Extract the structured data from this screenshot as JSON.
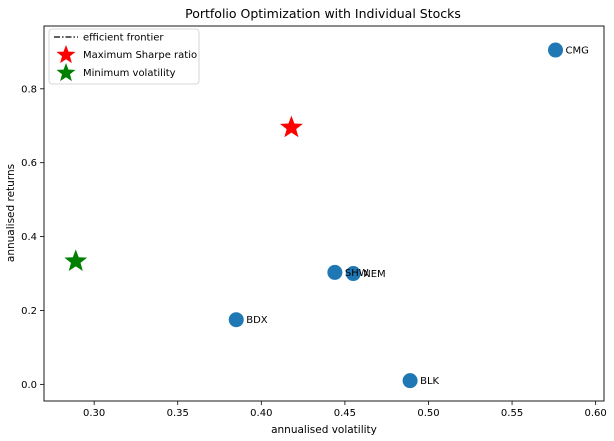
{
  "chart_data": {
    "type": "scatter",
    "title": "Portfolio Optimization with Individual Stocks",
    "xlabel": "annualised volatility",
    "ylabel": "annualised returns",
    "xlim": [
      0.27,
      0.605
    ],
    "ylim": [
      -0.045,
      0.97
    ],
    "x_ticks": [
      0.3,
      0.35,
      0.4,
      0.45,
      0.5,
      0.55,
      0.6
    ],
    "x_tick_labels": [
      "0.30",
      "0.35",
      "0.40",
      "0.45",
      "0.50",
      "0.55",
      "0.60"
    ],
    "y_ticks": [
      0.0,
      0.2,
      0.4,
      0.6,
      0.8
    ],
    "y_tick_labels": [
      "0.0",
      "0.2",
      "0.4",
      "0.6",
      "0.8"
    ],
    "grid": false,
    "legend_position": "top-left",
    "legend": [
      {
        "label": "efficient frontier",
        "marker": "dashdot-line",
        "color": "#000000"
      },
      {
        "label": "Maximum Sharpe ratio",
        "marker": "star",
        "color": "#ff0000"
      },
      {
        "label": "Minimum volatility",
        "marker": "star",
        "color": "#008000"
      }
    ],
    "stocks": [
      {
        "label": "CMG",
        "x": 0.576,
        "y": 0.905
      },
      {
        "label": "SHW",
        "x": 0.444,
        "y": 0.303
      },
      {
        "label": "NEM",
        "x": 0.455,
        "y": 0.3
      },
      {
        "label": "BDX",
        "x": 0.385,
        "y": 0.175
      },
      {
        "label": "BLK",
        "x": 0.489,
        "y": 0.01
      }
    ],
    "stock_color": "#1f77b4",
    "special_points": [
      {
        "name": "Maximum Sharpe ratio",
        "x": 0.418,
        "y": 0.695,
        "color": "#ff0000"
      },
      {
        "name": "Minimum volatility",
        "x": 0.289,
        "y": 0.333,
        "color": "#008000"
      }
    ]
  }
}
